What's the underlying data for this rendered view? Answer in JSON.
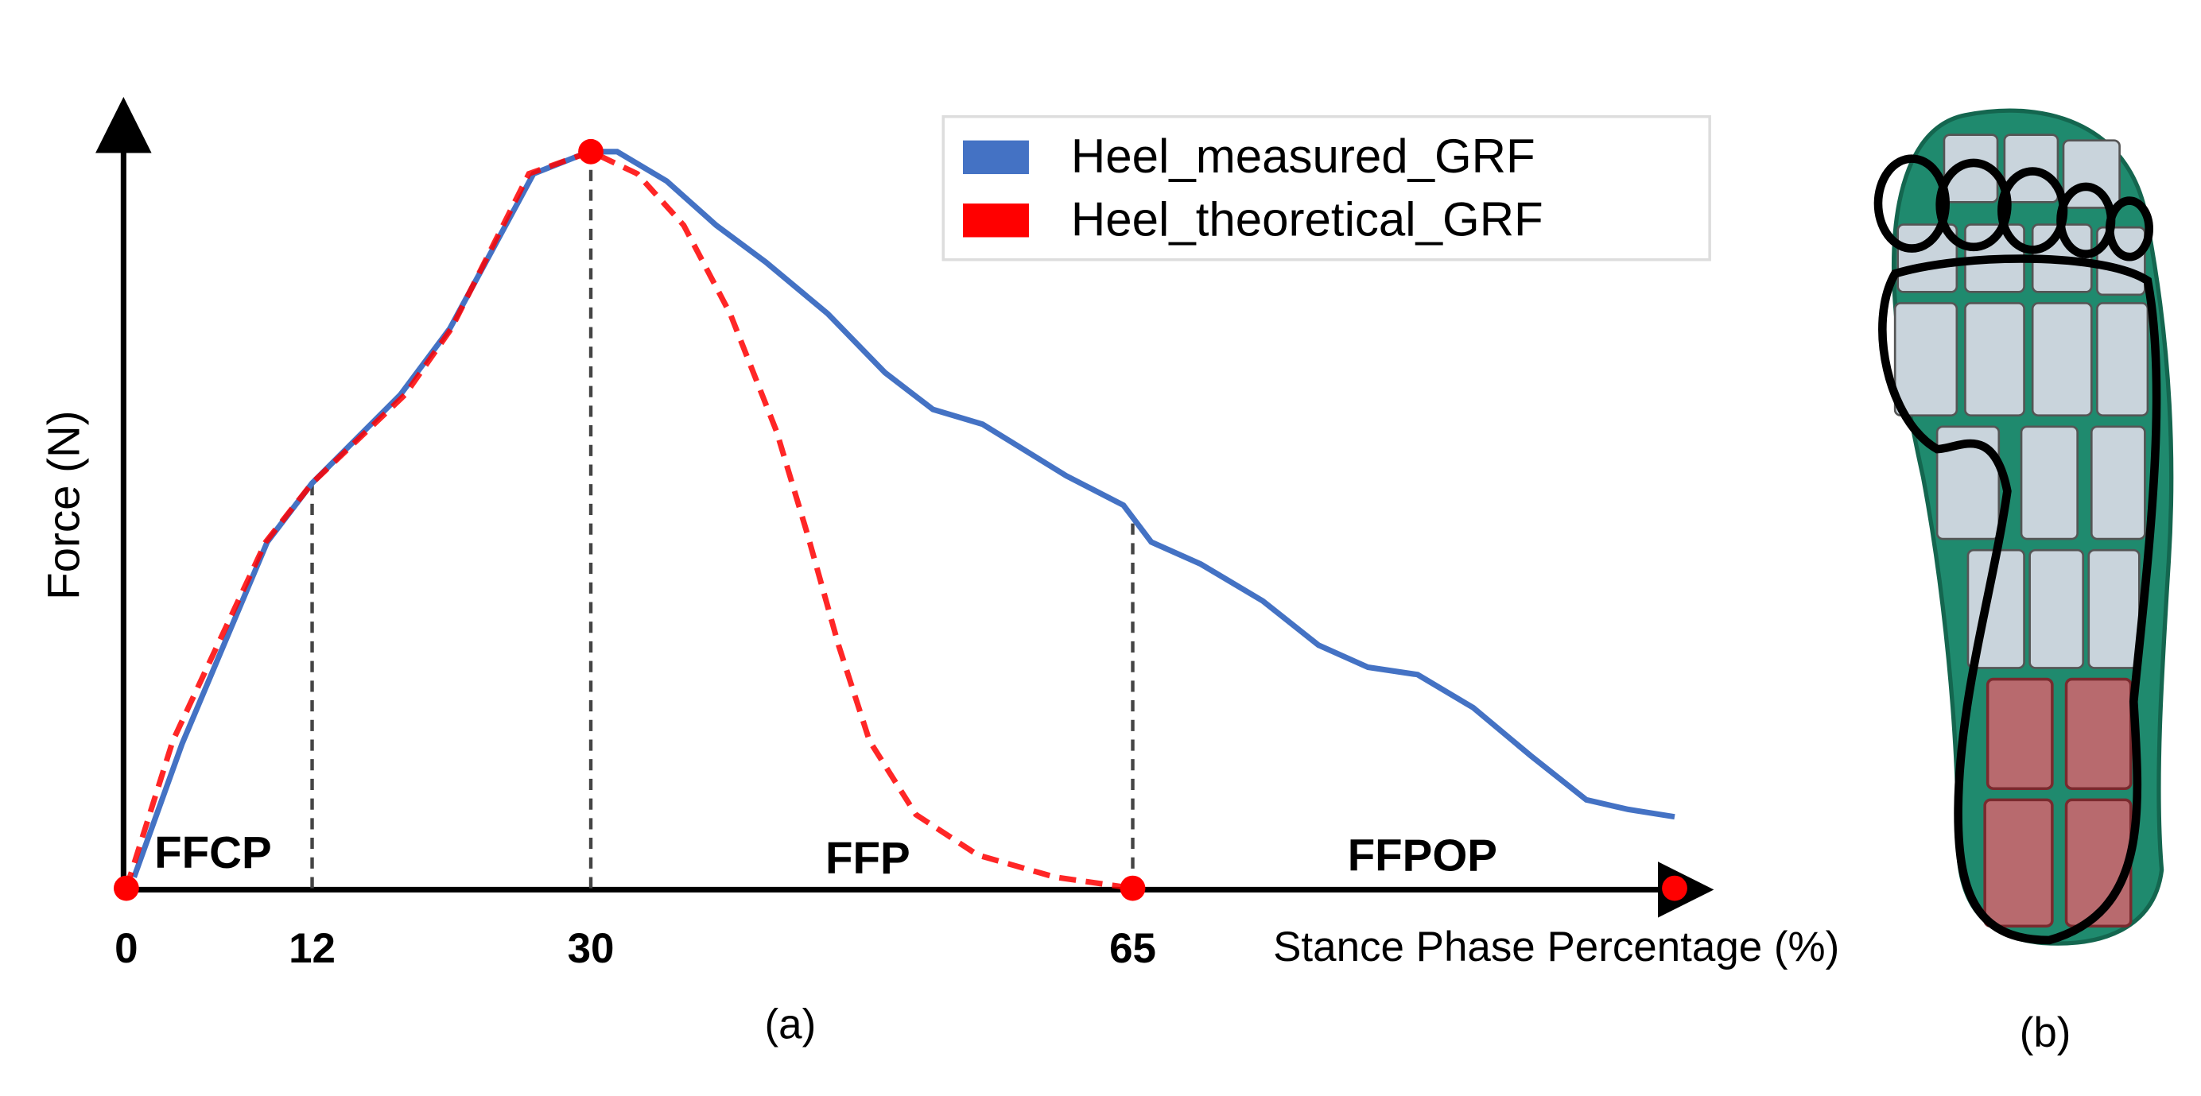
{
  "chart_data": {
    "type": "line",
    "x_label": "Stance Phase Percentage (%)",
    "y_label": "Force (N)",
    "xlim": [
      0,
      100
    ],
    "ylim": [
      0,
      100
    ],
    "xticks": [
      0,
      12,
      30,
      65
    ],
    "series": [
      {
        "name": "Heel_measured_GRF",
        "color": "#4472c4",
        "dash": false,
        "x": [
          0.5,
          3.6,
          9.1,
          12,
          17.7,
          20.9,
          26.3,
          29.9,
          31.7,
          34.9,
          38.1,
          41.3,
          45.3,
          49,
          52.1,
          55.3,
          60.7,
          64.4,
          66.2,
          69.4,
          73.4,
          77,
          80.2,
          83.4,
          87,
          90.7,
          94.3,
          97,
          100
        ],
        "values": [
          1.5,
          19.6,
          47,
          55,
          67,
          76,
          97,
          100,
          100,
          96,
          90,
          85,
          78,
          70,
          65,
          63,
          56,
          52,
          47,
          44,
          39,
          33,
          30,
          29,
          24.5,
          18,
          12,
          10.7,
          9.7
        ]
      },
      {
        "name": "Heel_theoretical_GRF",
        "color": "#ff0000",
        "dash": true,
        "x": [
          0,
          3,
          9,
          12,
          18,
          21,
          26,
          30,
          33,
          36,
          39,
          42,
          44,
          46,
          48,
          51,
          55,
          60,
          65
        ],
        "values": [
          0,
          20,
          47,
          55,
          67,
          76,
          97,
          100,
          97,
          90,
          78,
          62,
          48,
          33,
          20,
          10,
          4.5,
          1.5,
          0
        ]
      }
    ],
    "phase_points": {
      "x": [
        0,
        30,
        65,
        100
      ],
      "values": [
        0,
        100,
        0,
        0
      ],
      "color": "#ff0000"
    },
    "annotations": [
      "FFCP",
      "FFP",
      "FFPOP"
    ],
    "captions": [
      "(a)",
      "(b)"
    ]
  }
}
